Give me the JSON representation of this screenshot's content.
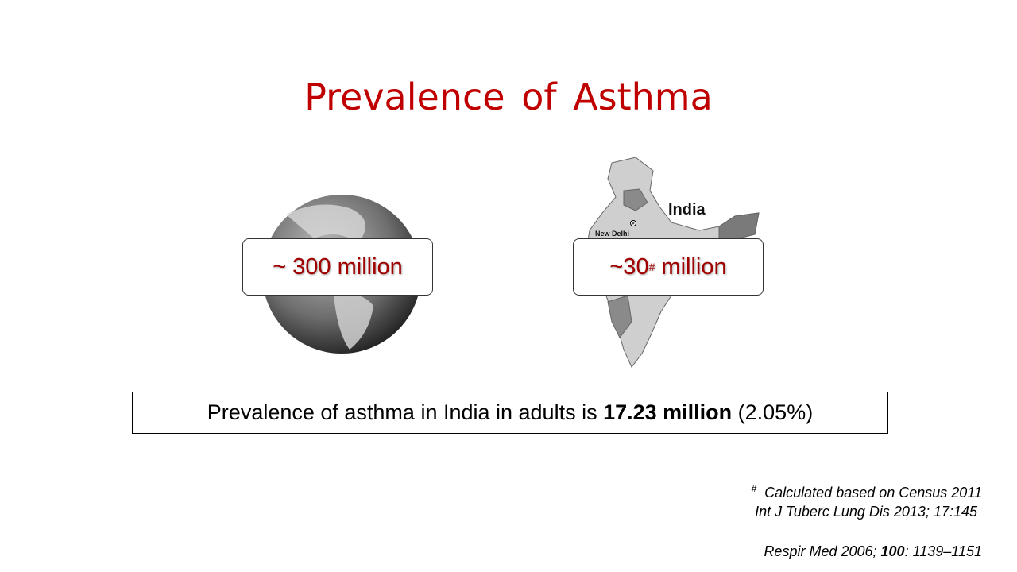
{
  "header": {
    "title": "Prevalence of Asthma"
  },
  "panels": [
    {
      "figure": "globe",
      "callout": "~ 300 million"
    },
    {
      "figure": "map",
      "map_labels": [
        "India",
        "New Delhi"
      ],
      "callout": {
        "before": "~30",
        "mark": "#",
        "after": " million"
      }
    }
  ],
  "statement": {
    "before": "Prevalence of asthma in India in adults is ",
    "bold": "17.23 million",
    "after": " (2.05%)"
  },
  "footnotes": {
    "note": {
      "mark": "#",
      "text": "Calculated based on Census 2011"
    },
    "reference_1": "Int J Tuberc Lung Dis 2013; 17:145",
    "reference_2": {
      "before": "Respir Med 2006; ",
      "bold": "100",
      "after": ": 1139–1151"
    }
  }
}
